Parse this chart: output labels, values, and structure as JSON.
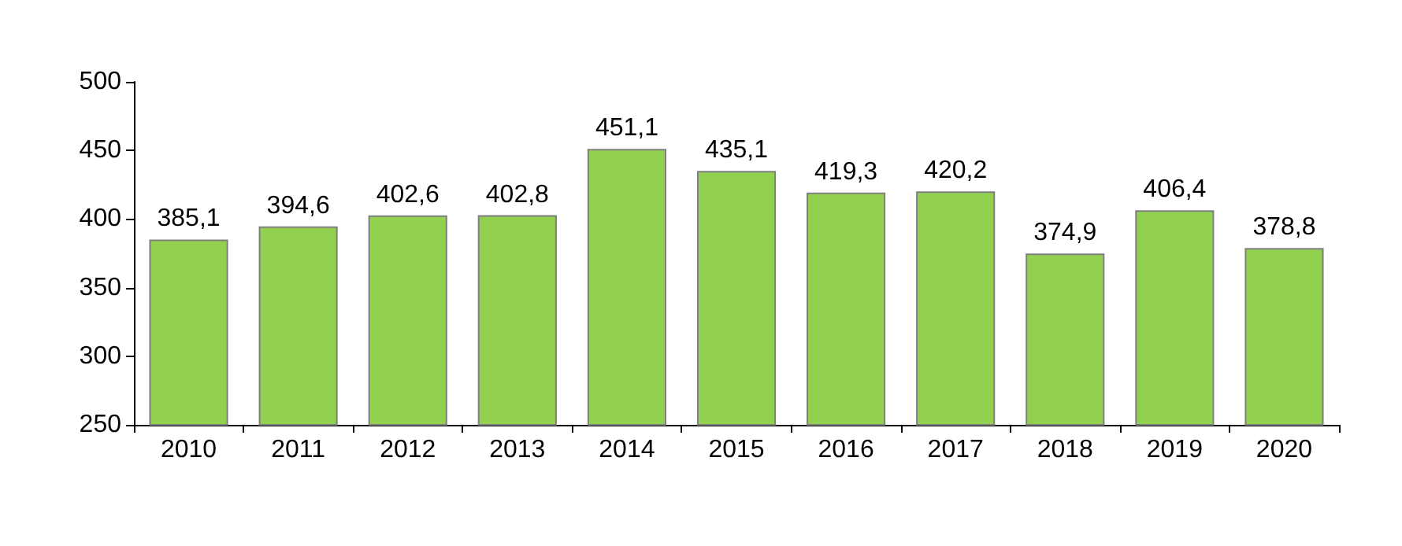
{
  "chart_data": {
    "type": "bar",
    "categories": [
      "2010",
      "2011",
      "2012",
      "2013",
      "2014",
      "2015",
      "2016",
      "2017",
      "2018",
      "2019",
      "2020"
    ],
    "values": [
      385.1,
      394.6,
      402.6,
      402.8,
      451.1,
      435.1,
      419.3,
      420.2,
      374.9,
      406.4,
      378.8
    ],
    "value_labels": [
      "385,1",
      "394,6",
      "402,6",
      "402,8",
      "451,1",
      "435,1",
      "419,3",
      "420,2",
      "374,9",
      "406,4",
      "378,8"
    ],
    "color": "#92d050",
    "ylim": [
      250,
      500
    ],
    "yticks": [
      250,
      300,
      350,
      400,
      450,
      500
    ],
    "grid": false
  }
}
